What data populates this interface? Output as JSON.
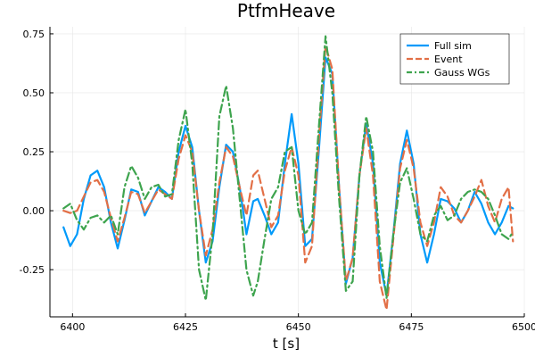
{
  "chart_data": {
    "type": "line",
    "title": "PtfmHeave",
    "xlabel": "t [s]",
    "ylabel": "",
    "xlim": [
      6395,
      6500
    ],
    "ylim": [
      -0.45,
      0.78
    ],
    "xticks": [
      6400,
      6425,
      6450,
      6475,
      6500
    ],
    "yticks": [
      -0.25,
      0.0,
      0.25,
      0.5,
      0.75
    ],
    "ytick_labels": [
      "-0.25",
      "0.00",
      "0.25",
      "0.50",
      "0.75"
    ],
    "grid": true,
    "legend_position": "top-right",
    "series": [
      {
        "name": "Full sim",
        "color": "#009AFA",
        "dash": "solid",
        "points": [
          [
            6398,
            -0.07
          ],
          [
            6399.5,
            -0.15
          ],
          [
            6401,
            -0.1
          ],
          [
            6402.5,
            0.05
          ],
          [
            6404,
            0.15
          ],
          [
            6405.5,
            0.17
          ],
          [
            6407,
            0.1
          ],
          [
            6408.5,
            -0.05
          ],
          [
            6410,
            -0.16
          ],
          [
            6411.5,
            -0.04
          ],
          [
            6413,
            0.09
          ],
          [
            6414.5,
            0.08
          ],
          [
            6416,
            -0.02
          ],
          [
            6417.5,
            0.04
          ],
          [
            6419,
            0.1
          ],
          [
            6420.5,
            0.08
          ],
          [
            6422,
            0.05
          ],
          [
            6423.5,
            0.25
          ],
          [
            6425,
            0.36
          ],
          [
            6426.5,
            0.27
          ],
          [
            6428,
            0.0
          ],
          [
            6429.5,
            -0.22
          ],
          [
            6431,
            -0.13
          ],
          [
            6432.5,
            0.1
          ],
          [
            6434,
            0.28
          ],
          [
            6435.5,
            0.25
          ],
          [
            6437,
            0.1
          ],
          [
            6438.5,
            -0.1
          ],
          [
            6440,
            0.04
          ],
          [
            6441,
            0.05
          ],
          [
            6442.5,
            -0.02
          ],
          [
            6444,
            -0.1
          ],
          [
            6445.5,
            -0.05
          ],
          [
            6447,
            0.2
          ],
          [
            6448.5,
            0.41
          ],
          [
            6450,
            0.2
          ],
          [
            6451.5,
            -0.15
          ],
          [
            6453,
            -0.12
          ],
          [
            6454.5,
            0.25
          ],
          [
            6456,
            0.65
          ],
          [
            6457.5,
            0.58
          ],
          [
            6459,
            0.1
          ],
          [
            6460.5,
            -0.31
          ],
          [
            6462,
            -0.2
          ],
          [
            6463.5,
            0.15
          ],
          [
            6465,
            0.37
          ],
          [
            6466.5,
            0.2
          ],
          [
            6468,
            -0.22
          ],
          [
            6469.5,
            -0.36
          ],
          [
            6471,
            -0.1
          ],
          [
            6472.5,
            0.2
          ],
          [
            6474,
            0.34
          ],
          [
            6475.5,
            0.2
          ],
          [
            6477,
            -0.1
          ],
          [
            6478.5,
            -0.22
          ],
          [
            6480,
            -0.1
          ],
          [
            6481.5,
            0.05
          ],
          [
            6483,
            0.04
          ],
          [
            6484.5,
            0.01
          ],
          [
            6486,
            -0.05
          ],
          [
            6487.5,
            0.0
          ],
          [
            6489,
            0.08
          ],
          [
            6490.5,
            0.03
          ],
          [
            6492,
            -0.05
          ],
          [
            6493.5,
            -0.1
          ],
          [
            6495,
            -0.05
          ],
          [
            6496.5,
            0.02
          ],
          [
            6497.5,
            0.01
          ]
        ]
      },
      {
        "name": "Event",
        "color": "#E26F46",
        "dash": "dash",
        "points": [
          [
            6398,
            0.0
          ],
          [
            6399.5,
            -0.01
          ],
          [
            6401,
            0.0
          ],
          [
            6402.5,
            0.06
          ],
          [
            6404,
            0.12
          ],
          [
            6405.5,
            0.13
          ],
          [
            6407,
            0.08
          ],
          [
            6408.5,
            -0.03
          ],
          [
            6410,
            -0.13
          ],
          [
            6411.5,
            -0.03
          ],
          [
            6413,
            0.08
          ],
          [
            6414.5,
            0.07
          ],
          [
            6416,
            -0.01
          ],
          [
            6417.5,
            0.04
          ],
          [
            6419,
            0.09
          ],
          [
            6420.5,
            0.07
          ],
          [
            6422,
            0.05
          ],
          [
            6423.5,
            0.22
          ],
          [
            6425,
            0.32
          ],
          [
            6426.5,
            0.25
          ],
          [
            6428,
            0.0
          ],
          [
            6429.5,
            -0.19
          ],
          [
            6431,
            -0.08
          ],
          [
            6432.5,
            0.12
          ],
          [
            6434,
            0.27
          ],
          [
            6435.5,
            0.23
          ],
          [
            6437,
            0.1
          ],
          [
            6438.5,
            -0.02
          ],
          [
            6440,
            0.15
          ],
          [
            6441,
            0.17
          ],
          [
            6442.5,
            0.05
          ],
          [
            6444,
            -0.07
          ],
          [
            6445.5,
            -0.02
          ],
          [
            6447,
            0.17
          ],
          [
            6448.5,
            0.27
          ],
          [
            6450,
            0.15
          ],
          [
            6451.5,
            -0.22
          ],
          [
            6453,
            -0.15
          ],
          [
            6454.5,
            0.3
          ],
          [
            6456,
            0.7
          ],
          [
            6457.5,
            0.6
          ],
          [
            6459,
            0.1
          ],
          [
            6460.5,
            -0.3
          ],
          [
            6462,
            -0.2
          ],
          [
            6463.5,
            0.15
          ],
          [
            6465,
            0.35
          ],
          [
            6466.5,
            0.15
          ],
          [
            6468,
            -0.3
          ],
          [
            6469.5,
            -0.42
          ],
          [
            6471,
            -0.12
          ],
          [
            6472.5,
            0.18
          ],
          [
            6474,
            0.3
          ],
          [
            6475.5,
            0.18
          ],
          [
            6477,
            -0.05
          ],
          [
            6478.5,
            -0.15
          ],
          [
            6480,
            -0.05
          ],
          [
            6481.5,
            0.1
          ],
          [
            6483,
            0.06
          ],
          [
            6484.5,
            -0.02
          ],
          [
            6486,
            -0.05
          ],
          [
            6487.5,
            0.0
          ],
          [
            6489,
            0.06
          ],
          [
            6490.5,
            0.13
          ],
          [
            6492,
            0.02
          ],
          [
            6493.5,
            -0.05
          ],
          [
            6495,
            0.05
          ],
          [
            6496.5,
            0.1
          ],
          [
            6497.5,
            -0.13
          ]
        ]
      },
      {
        "name": "Gauss WGs",
        "color": "#3EA44E",
        "dash": "dashdot",
        "points": [
          [
            6398,
            0.01
          ],
          [
            6399.5,
            0.03
          ],
          [
            6401,
            -0.04
          ],
          [
            6402.5,
            -0.08
          ],
          [
            6404,
            -0.03
          ],
          [
            6405.5,
            -0.02
          ],
          [
            6407,
            -0.05
          ],
          [
            6408.5,
            -0.02
          ],
          [
            6410,
            -0.1
          ],
          [
            6411.5,
            0.1
          ],
          [
            6413,
            0.19
          ],
          [
            6414.5,
            0.14
          ],
          [
            6416,
            0.05
          ],
          [
            6417.5,
            0.1
          ],
          [
            6419,
            0.11
          ],
          [
            6420.5,
            0.06
          ],
          [
            6422,
            0.07
          ],
          [
            6423.5,
            0.3
          ],
          [
            6425,
            0.43
          ],
          [
            6426.5,
            0.2
          ],
          [
            6428,
            -0.25
          ],
          [
            6429.5,
            -0.38
          ],
          [
            6431,
            -0.1
          ],
          [
            6432.5,
            0.4
          ],
          [
            6434,
            0.53
          ],
          [
            6435.5,
            0.35
          ],
          [
            6437,
            0.05
          ],
          [
            6438.5,
            -0.25
          ],
          [
            6440,
            -0.36
          ],
          [
            6441,
            -0.3
          ],
          [
            6442.5,
            -0.12
          ],
          [
            6444,
            0.05
          ],
          [
            6445.5,
            0.1
          ],
          [
            6447,
            0.25
          ],
          [
            6448.5,
            0.27
          ],
          [
            6450,
            0.0
          ],
          [
            6451.5,
            -0.1
          ],
          [
            6453,
            -0.05
          ],
          [
            6454.5,
            0.35
          ],
          [
            6456,
            0.74
          ],
          [
            6457.5,
            0.5
          ],
          [
            6459,
            0.05
          ],
          [
            6460.5,
            -0.34
          ],
          [
            6462,
            -0.3
          ],
          [
            6463.5,
            0.15
          ],
          [
            6465,
            0.4
          ],
          [
            6466.5,
            0.25
          ],
          [
            6468,
            -0.15
          ],
          [
            6469.5,
            -0.37
          ],
          [
            6471,
            -0.1
          ],
          [
            6472.5,
            0.12
          ],
          [
            6474,
            0.18
          ],
          [
            6475.5,
            0.05
          ],
          [
            6477,
            -0.1
          ],
          [
            6478.5,
            -0.13
          ],
          [
            6480,
            -0.02
          ],
          [
            6481.5,
            0.02
          ],
          [
            6483,
            -0.04
          ],
          [
            6484.5,
            -0.02
          ],
          [
            6486,
            0.05
          ],
          [
            6487.5,
            0.08
          ],
          [
            6489,
            0.09
          ],
          [
            6490.5,
            0.08
          ],
          [
            6492,
            0.05
          ],
          [
            6493.5,
            -0.02
          ],
          [
            6495,
            -0.1
          ],
          [
            6496.5,
            -0.12
          ],
          [
            6497.5,
            -0.09
          ]
        ]
      }
    ]
  }
}
